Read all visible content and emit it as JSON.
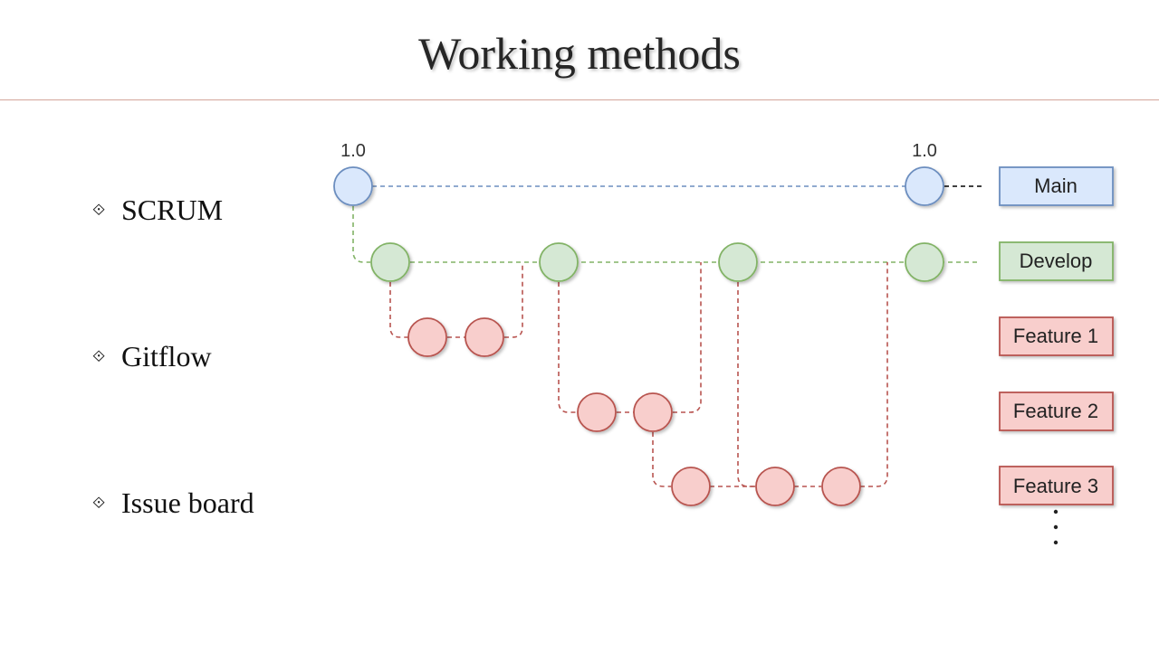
{
  "slide": {
    "title": "Working methods"
  },
  "bullets": [
    {
      "text": "SCRUM"
    },
    {
      "text": "Gitflow"
    },
    {
      "text": "Issue board"
    }
  ],
  "diagram": {
    "tags": [
      "1.0",
      "1.0"
    ],
    "branches": [
      {
        "label": "Main",
        "fill": "#dae8fc",
        "stroke": "#6c8ebf"
      },
      {
        "label": "Develop",
        "fill": "#d5e8d4",
        "stroke": "#82b366"
      },
      {
        "label": "Feature 1",
        "fill": "#f8cecc",
        "stroke": "#b85450"
      },
      {
        "label": "Feature 2",
        "fill": "#f8cecc",
        "stroke": "#b85450"
      },
      {
        "label": "Feature 3",
        "fill": "#f8cecc",
        "stroke": "#b85450"
      }
    ]
  },
  "colors": {
    "rule": "#d3a59a",
    "main": "#6c8ebf",
    "develop": "#82b366",
    "feature": "#b85450"
  }
}
